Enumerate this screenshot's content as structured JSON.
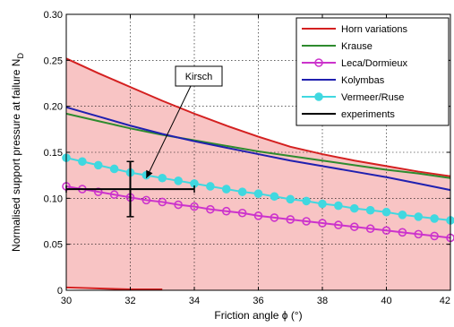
{
  "chart_data": {
    "type": "line",
    "xlabel": "Friction angle ϕ (°)",
    "ylabel": "Normalised support pressure at failure N",
    "ylabel_sub": "D",
    "xlim": [
      30,
      42
    ],
    "ylim": [
      0,
      0.3
    ],
    "x_ticks": [
      30,
      32,
      34,
      36,
      38,
      40,
      42
    ],
    "x_tick_labels": [
      "30",
      "32",
      "34",
      "36",
      "38",
      "40",
      "42"
    ],
    "y_ticks": [
      0,
      0.05,
      0.1,
      0.15,
      0.2,
      0.25,
      0.3
    ],
    "y_tick_labels": [
      "0",
      "0.05",
      "0.10",
      "0.15",
      "0.20",
      "0.25",
      "0.30"
    ],
    "grid": true,
    "legend_position": "top-right",
    "fill_between": {
      "upper_series": "Horn variations",
      "lower": [
        {
          "x": 30,
          "y": 0.002
        },
        {
          "x": 34,
          "y": 0.0
        },
        {
          "x": 42,
          "y": 0.0
        }
      ],
      "color": "#f8c4c4"
    },
    "series": [
      {
        "name": "Horn variations",
        "color": "#d42020",
        "marker": "none",
        "x": [
          30,
          31,
          32,
          33,
          34,
          35,
          36,
          37,
          38,
          39,
          40,
          41,
          42
        ],
        "y": [
          0.252,
          0.236,
          0.221,
          0.206,
          0.192,
          0.179,
          0.167,
          0.156,
          0.148,
          0.141,
          0.135,
          0.129,
          0.124
        ]
      },
      {
        "name": "Horn variations (lower bound)",
        "color": "#d42020",
        "marker": "none",
        "x": [
          30,
          32,
          33
        ],
        "y": [
          0.003,
          0.001,
          0.001
        ]
      },
      {
        "name": "Krause",
        "color": "#2e8b2e",
        "marker": "none",
        "x": [
          30,
          31,
          32,
          33,
          34,
          35,
          36,
          37,
          38,
          39,
          40,
          41,
          42
        ],
        "y": [
          0.192,
          0.184,
          0.176,
          0.169,
          0.163,
          0.157,
          0.151,
          0.146,
          0.141,
          0.136,
          0.131,
          0.127,
          0.122
        ]
      },
      {
        "name": "Leca/Dormieux",
        "color": "#cc33cc",
        "marker": "circle-open",
        "x": [
          30,
          30.5,
          31,
          31.5,
          32,
          32.5,
          33,
          33.5,
          34,
          34.5,
          35,
          35.5,
          36,
          36.5,
          37,
          37.5,
          38,
          38.5,
          39,
          39.5,
          40,
          40.5,
          41,
          41.5,
          42
        ],
        "y": [
          0.113,
          0.11,
          0.107,
          0.104,
          0.101,
          0.098,
          0.096,
          0.093,
          0.091,
          0.088,
          0.086,
          0.084,
          0.081,
          0.079,
          0.077,
          0.075,
          0.073,
          0.071,
          0.069,
          0.067,
          0.065,
          0.063,
          0.061,
          0.059,
          0.057
        ]
      },
      {
        "name": "Kolymbas",
        "color": "#2020b0",
        "marker": "none",
        "x": [
          30,
          31,
          32,
          33,
          34,
          35,
          36,
          37,
          38,
          39,
          40,
          41,
          42
        ],
        "y": [
          0.199,
          0.189,
          0.179,
          0.17,
          0.162,
          0.155,
          0.148,
          0.141,
          0.135,
          0.129,
          0.123,
          0.116,
          0.109
        ]
      },
      {
        "name": "Vermeer/Ruse",
        "color": "#40d8e0",
        "marker": "circle-filled",
        "x": [
          30,
          30.5,
          31,
          31.5,
          32,
          32.5,
          33,
          33.5,
          34,
          34.5,
          35,
          35.5,
          36,
          36.5,
          37,
          37.5,
          38,
          38.5,
          39,
          39.5,
          40,
          40.5,
          41,
          41.5,
          42
        ],
        "y": [
          0.144,
          0.14,
          0.136,
          0.132,
          0.128,
          0.125,
          0.122,
          0.119,
          0.116,
          0.113,
          0.11,
          0.107,
          0.105,
          0.102,
          0.099,
          0.097,
          0.094,
          0.092,
          0.089,
          0.087,
          0.085,
          0.082,
          0.08,
          0.078,
          0.076
        ]
      }
    ],
    "experiments": {
      "name": "experiments",
      "color": "#000000",
      "x": 32,
      "y": 0.11,
      "x_range": [
        30,
        34
      ],
      "y_range": [
        0.08,
        0.14
      ]
    },
    "legend": [
      {
        "label": "Horn variations",
        "color": "#d42020",
        "marker": "none"
      },
      {
        "label": "Krause",
        "color": "#2e8b2e",
        "marker": "none"
      },
      {
        "label": "Leca/Dormieux",
        "color": "#cc33cc",
        "marker": "circle-open"
      },
      {
        "label": "Kolymbas",
        "color": "#2020b0",
        "marker": "none"
      },
      {
        "label": "Vermeer/Ruse",
        "color": "#40d8e0",
        "marker": "circle-filled"
      },
      {
        "label": "experiments",
        "color": "#000000",
        "marker": "none"
      }
    ],
    "annotations": [
      {
        "text": "Kirsch",
        "points_to": {
          "x": 32.5,
          "y": 0.122
        }
      }
    ]
  }
}
